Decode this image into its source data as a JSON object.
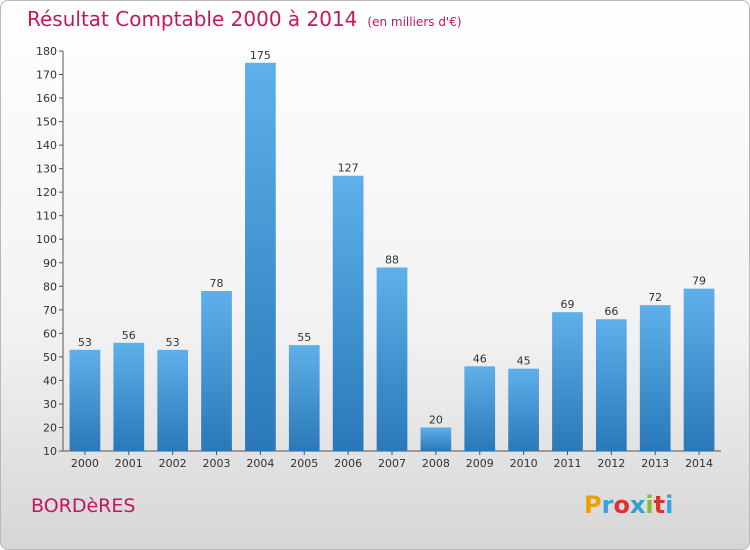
{
  "title": "Résultat Comptable 2000 à 2014",
  "subtitle": "(en milliers d'€)",
  "commune": "BORDèRES",
  "logo": {
    "letters": [
      "P",
      "r",
      "o",
      "x",
      "i",
      "t",
      "i"
    ],
    "colors": [
      "#f0a000",
      "#3aa0e0",
      "#e03030",
      "#2ea0d8",
      "#80c030",
      "#e03030",
      "#3aa0e0"
    ]
  },
  "colors": {
    "bar_top": "#5fb0ea",
    "bar_bottom": "#2a78b8",
    "accent": "#c2185b"
  },
  "chart_data": {
    "type": "bar",
    "categories": [
      "2000",
      "2001",
      "2002",
      "2003",
      "2004",
      "2005",
      "2006",
      "2007",
      "2008",
      "2009",
      "2010",
      "2011",
      "2012",
      "2013",
      "2014"
    ],
    "values": [
      53,
      56,
      53,
      78,
      175,
      55,
      127,
      88,
      20,
      46,
      45,
      69,
      66,
      72,
      79
    ],
    "ylim": [
      10,
      180
    ],
    "yticks": [
      10,
      20,
      30,
      40,
      50,
      60,
      70,
      80,
      90,
      100,
      110,
      120,
      130,
      140,
      150,
      160,
      170,
      180
    ],
    "grid": false,
    "legend": "none"
  }
}
